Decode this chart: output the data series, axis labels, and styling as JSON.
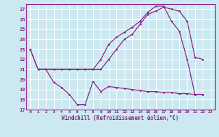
{
  "xlabel": "Windchill (Refroidissement éolien,°C)",
  "background_color": "#cce8f0",
  "grid_color": "#ffffff",
  "line_color": "#882288",
  "xlim": [
    -0.5,
    23.5
  ],
  "ylim": [
    17,
    27.5
  ],
  "yticks": [
    17,
    18,
    19,
    20,
    21,
    22,
    23,
    24,
    25,
    26,
    27
  ],
  "xticks": [
    0,
    1,
    2,
    3,
    4,
    5,
    6,
    7,
    8,
    9,
    10,
    11,
    12,
    13,
    14,
    15,
    16,
    17,
    18,
    19,
    20,
    21,
    22,
    23
  ],
  "line1_x": [
    0,
    1,
    2,
    3,
    4,
    5,
    6,
    7,
    8,
    9,
    10,
    11,
    12,
    13,
    14,
    15,
    16,
    17,
    18,
    19,
    20,
    21,
    22
  ],
  "line1_y": [
    23,
    21,
    21,
    21,
    21,
    21,
    21,
    21,
    21,
    21,
    22,
    23,
    24,
    24.5,
    25.5,
    26.5,
    26.8,
    27.2,
    27.0,
    26.8,
    25.8,
    22.2,
    22.0
  ],
  "line2_x": [
    0,
    1,
    2,
    3,
    4,
    5,
    6,
    7,
    8,
    9,
    10,
    11,
    12,
    13,
    14,
    15,
    16,
    17,
    18,
    19,
    20,
    21,
    22
  ],
  "line2_y": [
    23,
    21,
    21,
    21,
    21,
    21,
    21,
    21,
    21,
    22,
    23.5,
    24.2,
    24.7,
    25.2,
    25.8,
    26.7,
    27.3,
    27.3,
    25.8,
    24.8,
    22.0,
    18.5,
    18.5
  ],
  "line3_x": [
    1,
    2,
    3,
    4,
    5,
    6,
    7,
    8,
    9,
    10,
    11,
    12,
    13,
    14,
    15,
    16,
    17,
    18,
    19,
    20,
    21,
    22
  ],
  "line3_y": [
    21,
    21,
    19.7,
    19.2,
    18.5,
    17.5,
    17.5,
    19.8,
    18.8,
    19.3,
    19.2,
    19.1,
    19.0,
    18.9,
    18.8,
    18.8,
    18.7,
    18.7,
    18.6,
    18.6,
    18.5,
    18.5
  ]
}
